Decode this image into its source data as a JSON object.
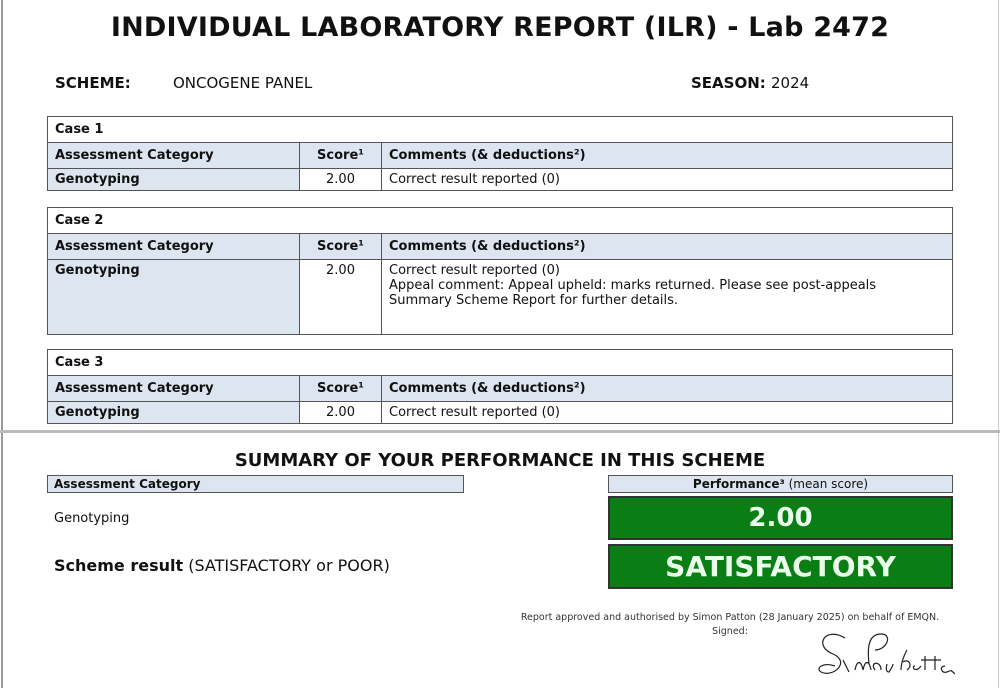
{
  "title": "INDIVIDUAL LABORATORY REPORT (ILR) - Lab 2472",
  "scheme_label": "SCHEME:",
  "scheme": "ONCOGENE PANEL",
  "season_label": "SEASON:",
  "season": "2024",
  "headers": {
    "category": "Assessment Category",
    "score": "Score¹",
    "comments": "Comments (& deductions²)"
  },
  "cases": [
    {
      "title": "Case 1",
      "category": "Genotyping",
      "score": "2.00",
      "comments": [
        "Correct result reported (0)"
      ]
    },
    {
      "title": "Case 2",
      "category": "Genotyping",
      "score": "2.00",
      "comments": [
        "Correct result reported (0)",
        "Appeal comment: Appeal upheld: marks returned. Please see post-appeals Summary Scheme Report for further details."
      ]
    },
    {
      "title": "Case 3",
      "category": "Genotyping",
      "score": "2.00",
      "comments": [
        "Correct result reported (0)"
      ]
    }
  ],
  "summary": {
    "title": "SUMMARY OF YOUR PERFORMANCE IN THIS SCHEME",
    "category_header": "Assessment Category",
    "category": "Genotyping",
    "performance_bold": "Performance³",
    "performance_rest": " (mean score)",
    "score": "2.00",
    "result_label_bold": "Scheme result",
    "result_label_rest": " (SATISFACTORY or POOR)",
    "result": "SATISFACTORY",
    "result_color": "#0a7d14"
  },
  "approval": "Report approved and authorised by Simon Patton (28 January 2025) on behalf of EMQN.",
  "signed": "Signed:",
  "signature": "Simon Patton"
}
